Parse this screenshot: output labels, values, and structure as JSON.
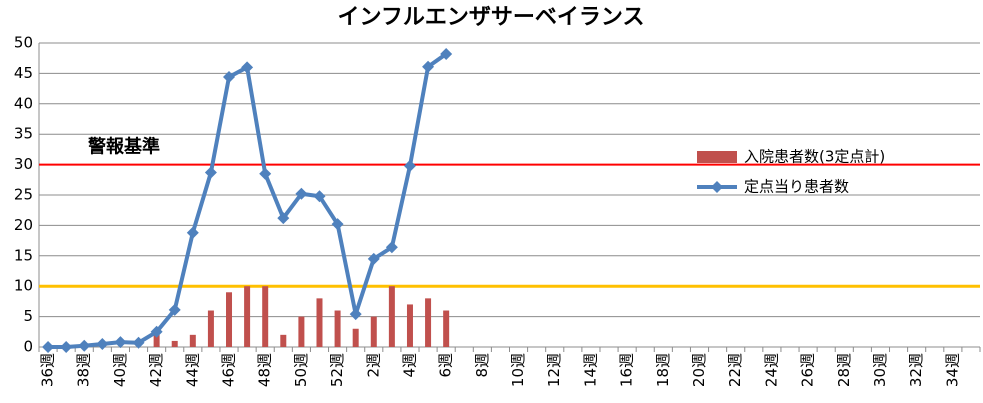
{
  "chart_data": {
    "type": "combo",
    "title": "インフルエンザサーベイランス",
    "categories": [
      "36週",
      null,
      "38週",
      null,
      "40週",
      null,
      "42週",
      null,
      "44週",
      null,
      "46週",
      null,
      "48週",
      null,
      "50週",
      null,
      "52週",
      null,
      "2週",
      null,
      "4週",
      null,
      "6週",
      null,
      "8週",
      null,
      "10週",
      null,
      "12週",
      null,
      "14週",
      null,
      "16週",
      null,
      "18週",
      null,
      "20週",
      null,
      "22週",
      null,
      "24週",
      null,
      "26週",
      null,
      "28週",
      null,
      "30週",
      null,
      "32週",
      null,
      "34週",
      null
    ],
    "series": [
      {
        "name": "入院患者数(3定点計)",
        "type": "bar",
        "color": "#c0504d",
        "values": [
          0,
          0,
          0,
          0,
          0,
          0,
          2,
          1,
          2,
          6,
          9,
          10,
          10,
          2,
          5,
          8,
          6,
          3,
          5,
          10,
          7,
          8,
          6,
          null,
          null,
          null,
          null,
          null,
          null,
          null,
          null,
          null,
          null,
          null,
          null,
          null,
          null,
          null,
          null,
          null,
          null,
          null,
          null,
          null,
          null,
          null,
          null,
          null,
          null,
          null,
          null,
          null
        ]
      },
      {
        "name": "定点当り患者数",
        "type": "line",
        "color": "#4f81bd",
        "values": [
          0,
          0,
          0.2,
          0.5,
          0.8,
          0.7,
          2.5,
          6.1,
          18.8,
          28.7,
          44.4,
          46.0,
          28.5,
          21.2,
          25.2,
          24.8,
          20.2,
          5.4,
          14.5,
          16.4,
          29.8,
          46.1,
          48.2,
          null,
          null,
          null,
          null,
          null,
          null,
          null,
          null,
          null,
          null,
          null,
          null,
          null,
          null,
          null,
          null,
          null,
          null,
          null,
          null,
          null,
          null,
          null,
          null,
          null,
          null,
          null,
          null,
          null
        ]
      }
    ],
    "reference_lines": [
      {
        "value": 30,
        "label": "警報基準",
        "color": "#ff0000"
      },
      {
        "value": 10,
        "color": "#ffc000"
      }
    ],
    "ylim": [
      0,
      50
    ],
    "yticks": [
      0,
      5,
      10,
      15,
      20,
      25,
      30,
      35,
      40,
      45,
      50
    ],
    "grid": true
  }
}
